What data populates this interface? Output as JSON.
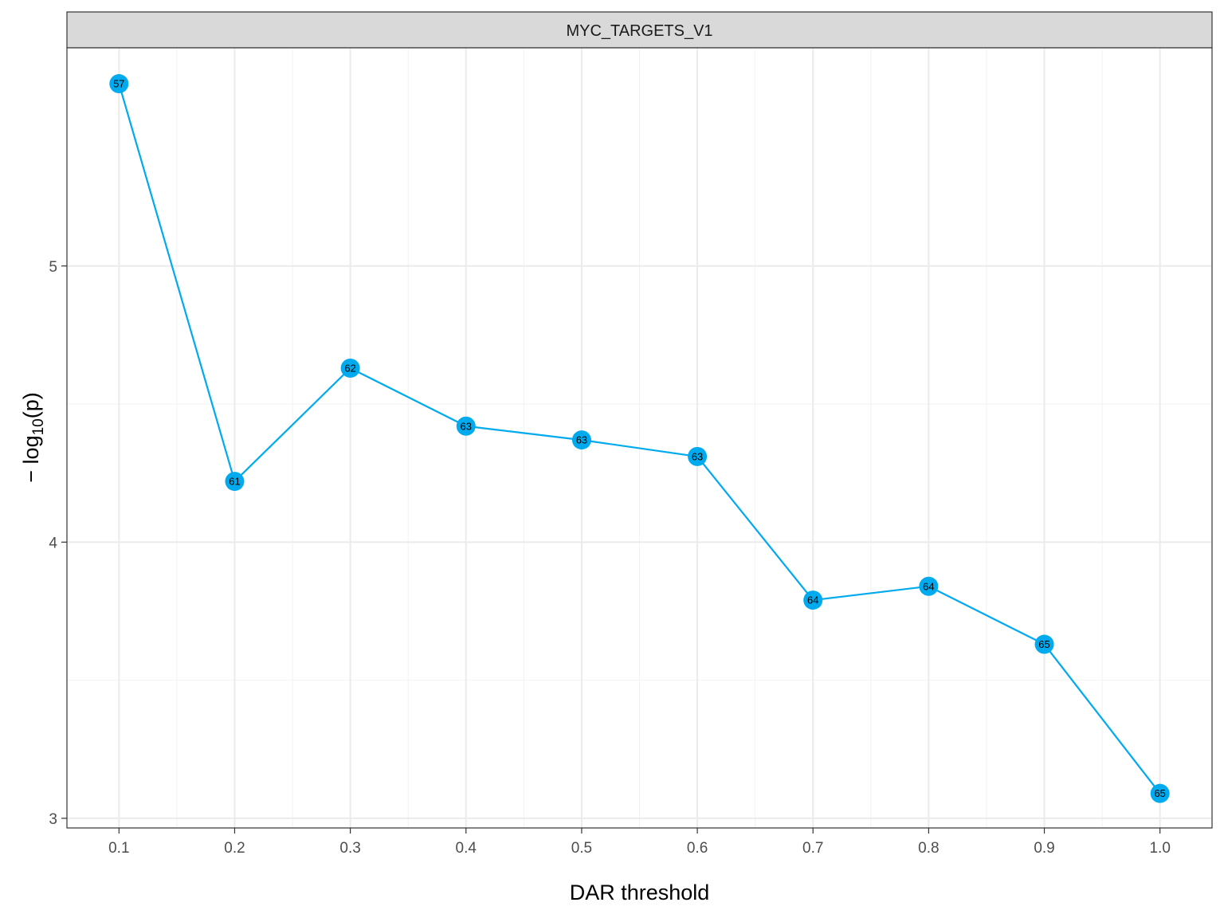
{
  "chart_data": {
    "type": "line",
    "facet_label": "MYC_TARGETS_V1",
    "xlabel": "DAR threshold",
    "ylabel_prefix": "− log",
    "ylabel_subscript": "10",
    "ylabel_suffix": "(p)",
    "x": [
      0.1,
      0.2,
      0.3,
      0.4,
      0.5,
      0.6,
      0.7,
      0.8,
      0.9,
      1.0
    ],
    "x_tick_labels": [
      "0.1",
      "0.2",
      "0.3",
      "0.4",
      "0.5",
      "0.6",
      "0.7",
      "0.8",
      "0.9",
      "1.0"
    ],
    "y": [
      5.66,
      4.22,
      4.63,
      4.42,
      4.37,
      4.31,
      3.79,
      3.84,
      3.63,
      3.09
    ],
    "point_labels": [
      "57",
      "61",
      "62",
      "63",
      "63",
      "63",
      "64",
      "64",
      "65",
      "65"
    ],
    "y_ticks": [
      3,
      4,
      5
    ],
    "y_tick_labels": [
      "3",
      "4",
      "5"
    ],
    "xlim": [
      0.055,
      1.045
    ],
    "ylim": [
      2.965,
      5.79
    ],
    "grid": true,
    "series_color": "#00AAEE"
  }
}
